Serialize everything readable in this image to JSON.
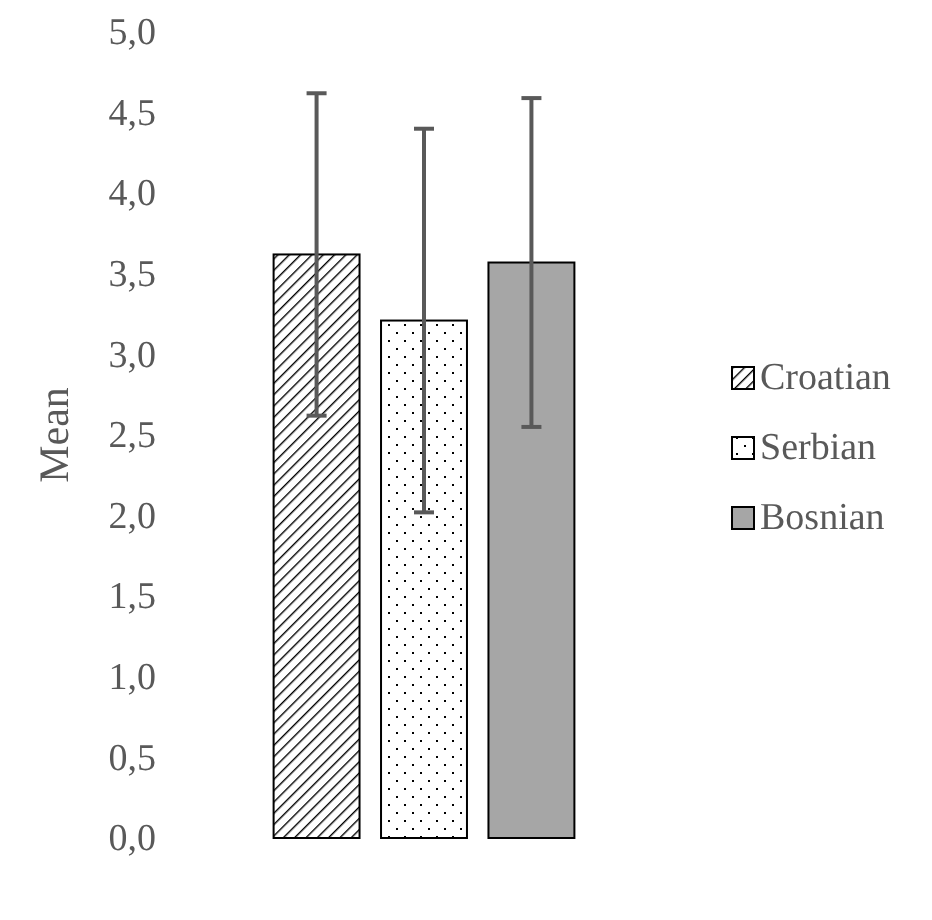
{
  "chart_data": {
    "type": "bar",
    "ylabel": "Mean",
    "categories": [
      null
    ],
    "series": [
      {
        "name": "Croatian",
        "color": "#000000",
        "values": [
          3.62
        ],
        "errors": [
          1.0
        ]
      },
      {
        "name": "Serbian",
        "color": "#000000",
        "values": [
          3.21
        ],
        "errors": [
          1.19
        ]
      },
      {
        "name": "Bosnian",
        "color": "#a6a6a6",
        "values": [
          3.57
        ],
        "errors": [
          1.02
        ]
      }
    ],
    "ylim": [
      0,
      5
    ],
    "yticks": [
      {
        "value": 0,
        "label": "0,0"
      },
      {
        "value": 0.5,
        "label": "0,5"
      },
      {
        "value": 1,
        "label": "1,0"
      },
      {
        "value": 1.5,
        "label": "1,5"
      },
      {
        "value": 2,
        "label": "2,0"
      },
      {
        "value": 2.5,
        "label": "2,5"
      },
      {
        "value": 3,
        "label": "3,0"
      },
      {
        "value": 3.5,
        "label": "3,5"
      },
      {
        "value": 4,
        "label": "4,0"
      },
      {
        "value": 4.5,
        "label": "4,5"
      },
      {
        "value": 5,
        "label": "5,0"
      }
    ],
    "tick_labels": "y",
    "legend": "right"
  }
}
